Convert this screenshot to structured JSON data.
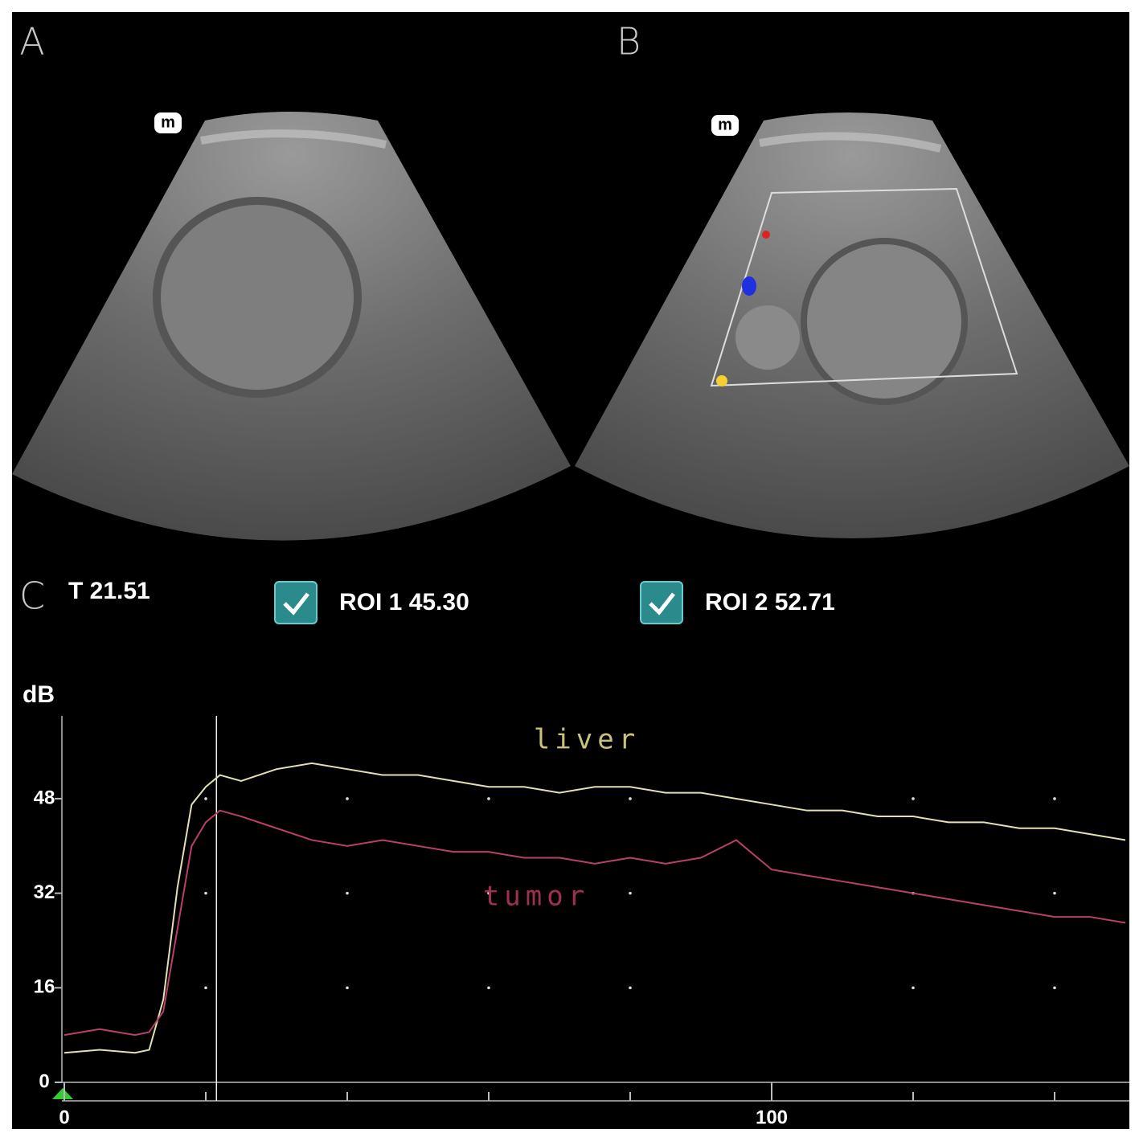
{
  "panels": {
    "a": {
      "label": "A",
      "marker": "m"
    },
    "b": {
      "label": "B",
      "marker": "m"
    },
    "c": {
      "label": "C"
    }
  },
  "chart_data": {
    "type": "line",
    "cursor": {
      "label": "T 21.51",
      "value": 21.51
    },
    "rois": [
      {
        "label": "ROI 1  45.30",
        "checked": true
      },
      {
        "label": "ROI 2  52.71",
        "checked": true
      }
    ],
    "y_label": "dB",
    "annotations": [
      {
        "text": "liver",
        "color": "#c8c27a"
      },
      {
        "text": "tumor",
        "color": "#a0304e"
      }
    ],
    "x": [
      0,
      5,
      10,
      12,
      14,
      16,
      18,
      20,
      22,
      25,
      30,
      35,
      40,
      45,
      50,
      55,
      60,
      65,
      70,
      75,
      80,
      85,
      90,
      95,
      100,
      105,
      110,
      115,
      120,
      125,
      130,
      135,
      140,
      145,
      150
    ],
    "series": [
      {
        "name": "liver",
        "color": "#e4e0b4",
        "values": [
          5,
          5.5,
          5,
          5.5,
          14,
          33,
          47,
          50,
          52,
          51,
          53,
          54,
          53,
          52,
          52,
          51,
          50,
          50,
          49,
          50,
          50,
          49,
          49,
          48,
          47,
          46,
          46,
          45,
          45,
          44,
          44,
          43,
          43,
          42,
          41
        ]
      },
      {
        "name": "tumor",
        "color": "#b8406a",
        "values": [
          8,
          9,
          8,
          8.5,
          12,
          26,
          40,
          44,
          46,
          45,
          43,
          41,
          40,
          41,
          40,
          39,
          39,
          38,
          38,
          37,
          38,
          37,
          38,
          41,
          36,
          35,
          34,
          33,
          32,
          31,
          30,
          29,
          28,
          28,
          27
        ]
      }
    ],
    "xlim": [
      0,
      150
    ],
    "ylim": [
      0,
      62
    ],
    "xticks": [
      0,
      100
    ],
    "xminor": [
      20,
      40,
      60,
      80,
      120,
      140
    ],
    "yticks": [
      0,
      16,
      32,
      48
    ],
    "grid": true
  }
}
